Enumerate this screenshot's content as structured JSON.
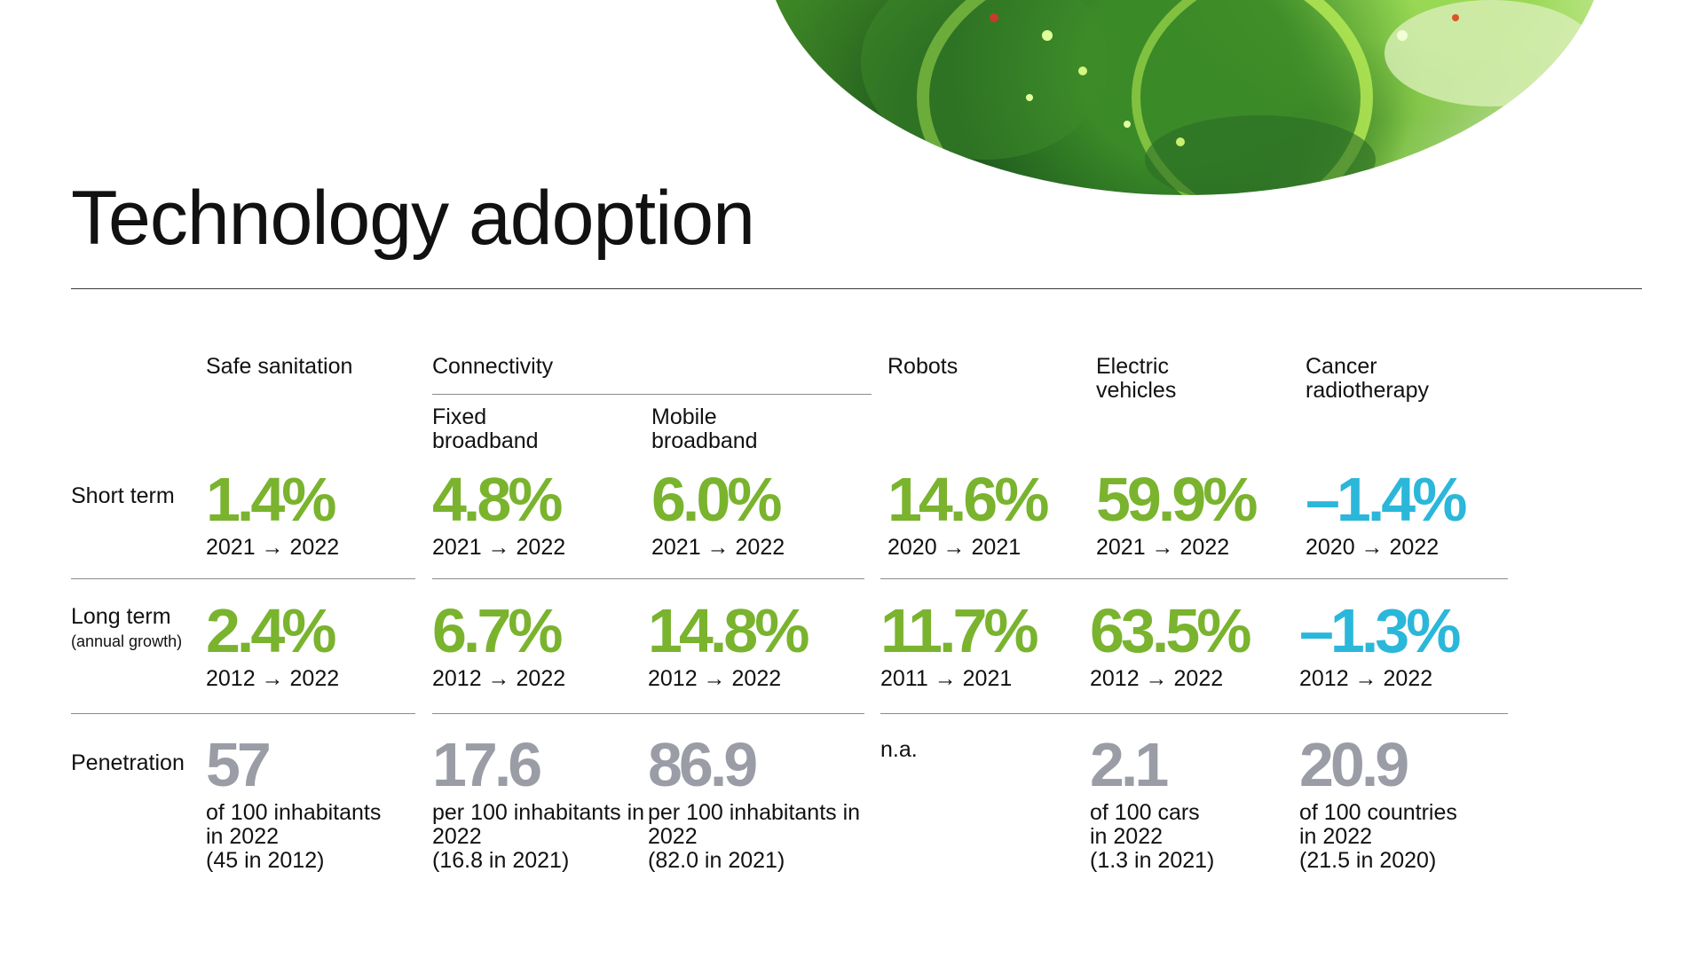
{
  "title": "Technology adoption",
  "colors": {
    "positive": "#7ab32e",
    "negative": "#2bb7d9",
    "penetration": "#9a9ca6"
  },
  "columns": {
    "sanitation": "Safe sanitation",
    "connectivity": "Connectivity",
    "fixed": "Fixed\nbroadband",
    "mobile": "Mobile\nbroadband",
    "robots": "Robots",
    "ev": "Electric\nvehicles",
    "cancer": "Cancer\nradiotherapy"
  },
  "rows": {
    "short_term": "Short term",
    "long_term": "Long term",
    "long_term_note": "(annual growth)",
    "penetration": "Penetration"
  },
  "short_term": {
    "sanitation": {
      "value": "1.4%",
      "period": "2021 → 2022"
    },
    "fixed": {
      "value": "4.8%",
      "period": "2021 → 2022"
    },
    "mobile": {
      "value": "6.0%",
      "period": "2021 → 2022"
    },
    "robots": {
      "value": "14.6%",
      "period": "2020 → 2021"
    },
    "ev": {
      "value": "59.9%",
      "period": "2021 → 2022"
    },
    "cancer": {
      "value": "–1.4%",
      "period": "2020 → 2022"
    }
  },
  "long_term": {
    "sanitation": {
      "value": "2.4%",
      "period": "2012 → 2022"
    },
    "fixed": {
      "value": "6.7%",
      "period": "2012 → 2022"
    },
    "mobile": {
      "value": "14.8%",
      "period": "2012 → 2022"
    },
    "robots": {
      "value": "11.7%",
      "period": "2011 → 2021"
    },
    "ev": {
      "value": "63.5%",
      "period": "2012 → 2022"
    },
    "cancer": {
      "value": "–1.3%",
      "period": "2012 → 2022"
    }
  },
  "penetration": {
    "sanitation": {
      "value": "57",
      "desc": "of 100 inhabitants\nin 2022\n(45 in 2012)"
    },
    "fixed": {
      "value": "17.6",
      "desc": "per 100 inhabitants in\n2022\n(16.8 in 2021)"
    },
    "mobile": {
      "value": "86.9",
      "desc": "per 100 inhabitants in\n2022\n(82.0 in 2021)"
    },
    "robots": {
      "na": "n.a."
    },
    "ev": {
      "value": "2.1",
      "desc": "of 100 cars\nin 2022\n(1.3 in 2021)"
    },
    "cancer": {
      "value": "20.9",
      "desc": "of 100 countries\nin 2022\n(21.5 in 2020)"
    }
  }
}
